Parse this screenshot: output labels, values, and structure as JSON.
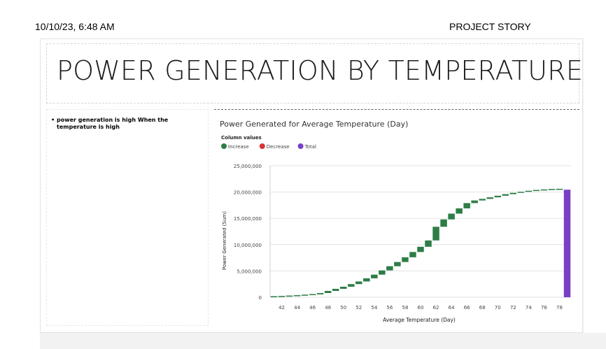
{
  "header": {
    "datetime": "10/10/23, 6:48 AM",
    "title": "PROJECT STORY"
  },
  "slide": {
    "title": "POWER GENERATION BY  TEMPERATURE",
    "bullets": [
      "power generation is high When the temperature is high"
    ]
  },
  "chart_data": {
    "type": "waterfall",
    "title": "Power Generated for Average Temperature (Day)",
    "legend_title": "Column values",
    "legend": [
      {
        "name": "Increase",
        "color": "#2e7d46"
      },
      {
        "name": "Decrease",
        "color": "#d8323c"
      },
      {
        "name": "Total",
        "color": "#7b3fc4"
      }
    ],
    "xlabel": "Average Temperature (Day)",
    "ylabel": "Power Generated (Sum)",
    "ylim": [
      0,
      25000000
    ],
    "yticks": [
      "0",
      "5,000,000",
      "10,000,000",
      "15,000,000",
      "20,000,000",
      "25,000,000"
    ],
    "xticks": [
      "42",
      "44",
      "46",
      "48",
      "50",
      "52",
      "54",
      "56",
      "58",
      "60",
      "62",
      "64",
      "66",
      "68",
      "70",
      "72",
      "74",
      "76",
      "78"
    ],
    "x": [
      41,
      42,
      43,
      44,
      45,
      46,
      47,
      48,
      49,
      50,
      51,
      52,
      53,
      54,
      55,
      56,
      57,
      58,
      59,
      60,
      61,
      62,
      63,
      64,
      65,
      66,
      67,
      68,
      69,
      70,
      71,
      72,
      73,
      74,
      75,
      76,
      77,
      78
    ],
    "cumulative_end": [
      50000,
      120000,
      200000,
      290000,
      400000,
      550000,
      800000,
      1200000,
      1600000,
      2000000,
      2500000,
      3000000,
      3600000,
      4300000,
      5100000,
      5900000,
      6700000,
      7600000,
      8600000,
      9600000,
      10800000,
      13400000,
      14800000,
      15900000,
      16900000,
      17900000,
      18400000,
      18700000,
      19000000,
      19300000,
      19600000,
      19850000,
      20050000,
      20200000,
      20300000,
      20380000,
      20420000,
      20450000
    ],
    "total": 20450000,
    "grid": true,
    "legend_position": "top-left"
  }
}
